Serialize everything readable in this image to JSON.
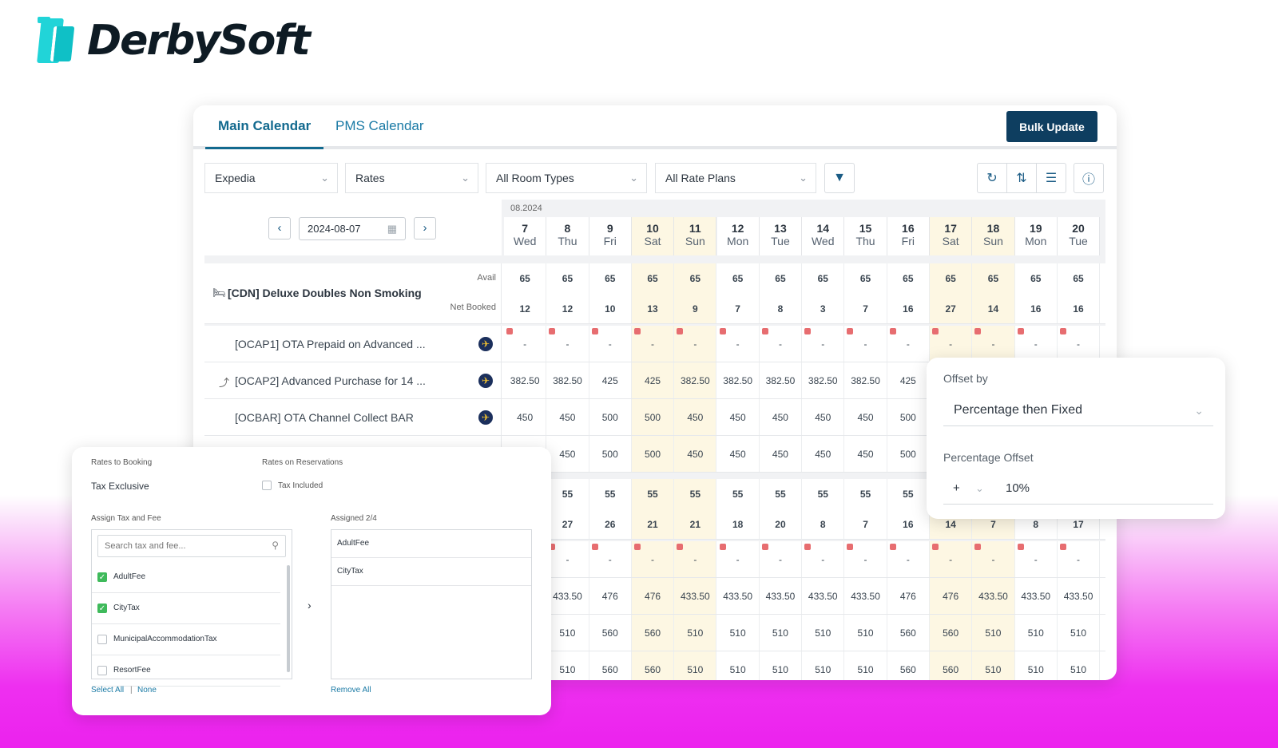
{
  "brand": {
    "name": "DerbySoft"
  },
  "tabs": [
    {
      "label": "Main Calendar",
      "active": true
    },
    {
      "label": "PMS Calendar",
      "active": false
    }
  ],
  "bulk_update_label": "Bulk Update",
  "filters": {
    "channel": "Expedia",
    "data_type": "Rates",
    "room_types": "All Room Types",
    "rate_plans": "All Rate Plans"
  },
  "toolbar_icons": [
    "filter-icon",
    "refresh-icon",
    "sort-icon",
    "settings-icon",
    "info-icon"
  ],
  "date_picker": {
    "value": "2024-08-07"
  },
  "month_label": "08.2024",
  "days": [
    {
      "day": "7",
      "dow": "Wed",
      "weekend": false
    },
    {
      "day": "8",
      "dow": "Thu",
      "weekend": false
    },
    {
      "day": "9",
      "dow": "Fri",
      "weekend": false
    },
    {
      "day": "10",
      "dow": "Sat",
      "weekend": true
    },
    {
      "day": "11",
      "dow": "Sun",
      "weekend": true
    },
    {
      "day": "12",
      "dow": "Mon",
      "weekend": false
    },
    {
      "day": "13",
      "dow": "Tue",
      "weekend": false
    },
    {
      "day": "14",
      "dow": "Wed",
      "weekend": false
    },
    {
      "day": "15",
      "dow": "Thu",
      "weekend": false
    },
    {
      "day": "16",
      "dow": "Fri",
      "weekend": false
    },
    {
      "day": "17",
      "dow": "Sat",
      "weekend": true
    },
    {
      "day": "18",
      "dow": "Sun",
      "weekend": true
    },
    {
      "day": "19",
      "dow": "Mon",
      "weekend": false
    },
    {
      "day": "20",
      "dow": "Tue",
      "weekend": false
    }
  ],
  "room": {
    "name": "[CDN] Deluxe Doubles Non Smoking",
    "avail_label": "Avail",
    "booked_label": "Net Booked",
    "avail": [
      "65",
      "65",
      "65",
      "65",
      "65",
      "65",
      "65",
      "65",
      "65",
      "65",
      "65",
      "65",
      "65",
      "65"
    ],
    "booked": [
      "12",
      "12",
      "10",
      "13",
      "9",
      "7",
      "8",
      "3",
      "7",
      "16",
      "27",
      "14",
      "16",
      "16"
    ]
  },
  "plans": [
    {
      "name": "[OCAP1] OTA Prepaid on Advanced ...",
      "values": [
        "-",
        "-",
        "-",
        "-",
        "-",
        "-",
        "-",
        "-",
        "-",
        "-",
        "-",
        "-",
        "-",
        "-"
      ],
      "flags": true
    },
    {
      "name": "[OCAP2] Advanced Purchase for 14 ...",
      "values": [
        "382.50",
        "382.50",
        "425",
        "425",
        "382.50",
        "382.50",
        "382.50",
        "382.50",
        "382.50",
        "425",
        "",
        "",
        "",
        ""
      ],
      "flags": false
    },
    {
      "name": "[OCBAR] OTA Channel Collect BAR",
      "values": [
        "450",
        "450",
        "500",
        "500",
        "450",
        "450",
        "450",
        "450",
        "450",
        "500",
        "",
        "",
        "",
        ""
      ],
      "flags": false
    },
    {
      "name": "",
      "values": [
        "",
        "450",
        "500",
        "500",
        "450",
        "450",
        "450",
        "450",
        "450",
        "500",
        "",
        "",
        "",
        ""
      ],
      "flags": false
    }
  ],
  "room2": {
    "avail": [
      "",
      "55",
      "55",
      "55",
      "55",
      "55",
      "55",
      "55",
      "55",
      "55",
      "",
      "",
      "",
      ""
    ],
    "booked": [
      "",
      "27",
      "26",
      "21",
      "21",
      "18",
      "20",
      "8",
      "7",
      "16",
      "14",
      "7",
      "8",
      "17"
    ]
  },
  "plans2": [
    {
      "values": [
        "",
        "-",
        "-",
        "-",
        "-",
        "-",
        "-",
        "-",
        "-",
        "-",
        "-",
        "-",
        "-",
        "-"
      ],
      "flags": true
    },
    {
      "values": [
        "",
        "433.50",
        "476",
        "476",
        "433.50",
        "433.50",
        "433.50",
        "433.50",
        "433.50",
        "476",
        "476",
        "433.50",
        "433.50",
        "433.50"
      ],
      "flags": false
    },
    {
      "values": [
        "",
        "510",
        "560",
        "560",
        "510",
        "510",
        "510",
        "510",
        "510",
        "560",
        "560",
        "510",
        "510",
        "510"
      ],
      "flags": false
    },
    {
      "values": [
        "",
        "510",
        "560",
        "560",
        "510",
        "510",
        "510",
        "510",
        "510",
        "560",
        "560",
        "510",
        "510",
        "510"
      ],
      "flags": false
    }
  ],
  "tax_panel": {
    "rates_to_booking_label": "Rates to Booking",
    "rates_to_booking_value": "Tax Exclusive",
    "rates_on_reservations_label": "Rates on Reservations",
    "tax_included_label": "Tax Included",
    "assign_label": "Assign Tax and Fee",
    "search_placeholder": "Search tax and fee...",
    "options": [
      {
        "name": "AdultFee",
        "checked": true
      },
      {
        "name": "CityTax",
        "checked": true
      },
      {
        "name": "MunicipalAccommodationTax",
        "checked": false
      },
      {
        "name": "ResortFee",
        "checked": false
      }
    ],
    "assigned_label": "Assigned 2/4",
    "assigned": [
      "AdultFee",
      "CityTax"
    ],
    "select_all": "Select All",
    "separator": "|",
    "none": "None",
    "remove_all": "Remove All"
  },
  "offset_panel": {
    "offset_by_label": "Offset by",
    "offset_by_value": "Percentage then Fixed",
    "percentage_label": "Percentage Offset",
    "sign": "+",
    "percentage_value": "10%"
  }
}
